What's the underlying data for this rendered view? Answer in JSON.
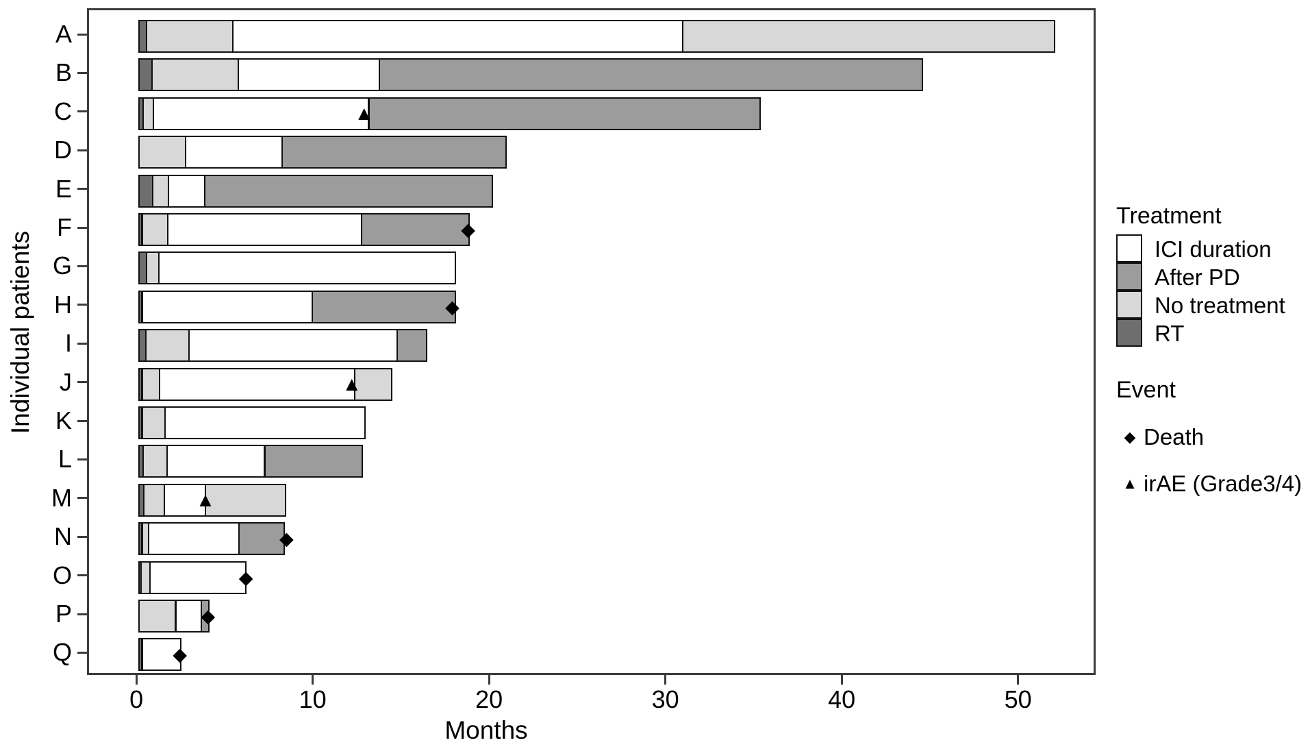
{
  "colors": {
    "ici": "#ffffff",
    "after_pd": "#9c9c9c",
    "no_treatment": "#d8d8d8",
    "rt": "#6e6e6e",
    "frame": "#3c3c3c",
    "segment_border": "#111111"
  },
  "markers": {
    "death": "◆",
    "irae": "▲"
  },
  "chart_data": {
    "type": "bar",
    "variant": "swimmer-plot",
    "title": "",
    "xlabel": "Months",
    "ylabel": "Individual patients",
    "xticks": [
      0,
      10,
      20,
      30,
      40,
      50
    ],
    "xlim": [
      -2.8,
      54.4
    ],
    "grid": "off",
    "legend_position": "right",
    "categories": [
      "A",
      "B",
      "C",
      "D",
      "E",
      "F",
      "G",
      "H",
      "I",
      "J",
      "K",
      "L",
      "M",
      "N",
      "O",
      "P",
      "Q"
    ],
    "patients": [
      {
        "id": "A",
        "segments": [
          [
            "rt",
            0,
            0.5
          ],
          [
            "no_treatment",
            0.5,
            5.4
          ],
          [
            "ici",
            5.4,
            30.9
          ],
          [
            "no_treatment",
            30.9,
            52.0
          ]
        ],
        "events": []
      },
      {
        "id": "B",
        "segments": [
          [
            "rt",
            0,
            0.8
          ],
          [
            "no_treatment",
            0.8,
            5.7
          ],
          [
            "ici",
            5.7,
            13.7
          ],
          [
            "after_pd",
            13.7,
            44.5
          ]
        ],
        "events": []
      },
      {
        "id": "C",
        "segments": [
          [
            "rt",
            0,
            0.3
          ],
          [
            "no_treatment",
            0.3,
            0.9
          ],
          [
            "ici",
            0.9,
            13.1
          ],
          [
            "after_pd",
            13.1,
            35.3
          ]
        ],
        "events": [
          [
            "irae",
            12.8
          ]
        ]
      },
      {
        "id": "D",
        "segments": [
          [
            "no_treatment",
            0,
            2.7
          ],
          [
            "ici",
            2.7,
            8.2
          ],
          [
            "after_pd",
            8.2,
            20.9
          ]
        ],
        "events": []
      },
      {
        "id": "E",
        "segments": [
          [
            "rt",
            0,
            0.85
          ],
          [
            "no_treatment",
            0.85,
            1.75
          ],
          [
            "ici",
            1.75,
            3.8
          ],
          [
            "after_pd",
            3.8,
            20.1
          ]
        ],
        "events": []
      },
      {
        "id": "F",
        "segments": [
          [
            "rt",
            0,
            0.25
          ],
          [
            "no_treatment",
            0.25,
            1.7
          ],
          [
            "ici",
            1.7,
            12.7
          ],
          [
            "after_pd",
            12.7,
            18.8
          ]
        ],
        "events": [
          [
            "death",
            18.7
          ]
        ]
      },
      {
        "id": "G",
        "segments": [
          [
            "rt",
            0,
            0.5
          ],
          [
            "no_treatment",
            0.5,
            1.2
          ],
          [
            "ici",
            1.2,
            18.0
          ]
        ],
        "events": []
      },
      {
        "id": "H",
        "segments": [
          [
            "rt",
            0,
            0.25
          ],
          [
            "ici",
            0.25,
            9.9
          ],
          [
            "after_pd",
            9.9,
            18.0
          ]
        ],
        "events": [
          [
            "death",
            17.8
          ]
        ]
      },
      {
        "id": "I",
        "segments": [
          [
            "rt",
            0,
            0.45
          ],
          [
            "no_treatment",
            0.45,
            2.9
          ],
          [
            "ici",
            2.9,
            14.7
          ],
          [
            "after_pd",
            14.7,
            16.4
          ]
        ],
        "events": []
      },
      {
        "id": "J",
        "segments": [
          [
            "rt",
            0,
            0.25
          ],
          [
            "no_treatment",
            0.25,
            1.25
          ],
          [
            "ici",
            1.25,
            12.3
          ],
          [
            "no_treatment",
            12.3,
            14.4
          ]
        ],
        "events": [
          [
            "irae",
            12.1
          ]
        ]
      },
      {
        "id": "K",
        "segments": [
          [
            "rt",
            0,
            0.25
          ],
          [
            "no_treatment",
            0.25,
            1.55
          ],
          [
            "ici",
            1.55,
            12.9
          ]
        ],
        "events": []
      },
      {
        "id": "L",
        "segments": [
          [
            "rt",
            0,
            0.3
          ],
          [
            "no_treatment",
            0.3,
            1.65
          ],
          [
            "ici",
            1.65,
            7.2
          ],
          [
            "after_pd",
            7.2,
            12.75
          ]
        ],
        "events": []
      },
      {
        "id": "M",
        "segments": [
          [
            "rt",
            0,
            0.35
          ],
          [
            "no_treatment",
            0.35,
            1.5
          ],
          [
            "ici",
            1.5,
            3.85
          ],
          [
            "no_treatment",
            3.85,
            8.4
          ]
        ],
        "events": [
          [
            "irae",
            3.8
          ]
        ]
      },
      {
        "id": "N",
        "segments": [
          [
            "rt",
            0,
            0.25
          ],
          [
            "no_treatment",
            0.25,
            0.6
          ],
          [
            "ici",
            0.6,
            5.75
          ],
          [
            "after_pd",
            5.75,
            8.3
          ]
        ],
        "events": [
          [
            "death",
            8.4
          ]
        ]
      },
      {
        "id": "O",
        "segments": [
          [
            "rt",
            0,
            0.2
          ],
          [
            "no_treatment",
            0.2,
            0.7
          ],
          [
            "ici",
            0.7,
            6.15
          ]
        ],
        "events": [
          [
            "death",
            6.1
          ]
        ]
      },
      {
        "id": "P",
        "segments": [
          [
            "no_treatment",
            0,
            2.15
          ],
          [
            "ici",
            2.15,
            3.6
          ],
          [
            "after_pd",
            3.6,
            4.05
          ]
        ],
        "events": [
          [
            "death",
            3.95
          ]
        ]
      },
      {
        "id": "Q",
        "segments": [
          [
            "rt",
            0,
            0.25
          ],
          [
            "ici",
            0.25,
            2.45
          ]
        ],
        "events": [
          [
            "death",
            2.35
          ]
        ]
      }
    ],
    "legend": {
      "treatment_title": "Treatment",
      "treatment_items": [
        {
          "label": "ICI duration",
          "key": "ici"
        },
        {
          "label": "After PD",
          "key": "after_pd"
        },
        {
          "label": "No treatment",
          "key": "no_treatment"
        },
        {
          "label": "RT",
          "key": "rt"
        }
      ],
      "event_title": "Event",
      "event_items": [
        {
          "label": "Death",
          "key": "death"
        },
        {
          "label": "irAE (Grade3/4)",
          "key": "irae"
        }
      ]
    }
  }
}
